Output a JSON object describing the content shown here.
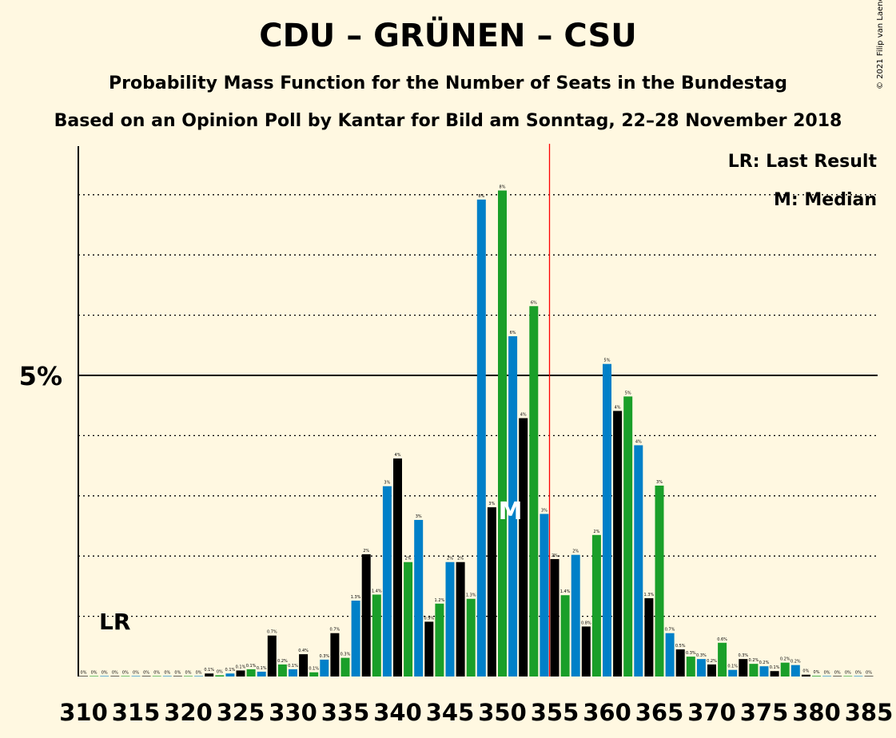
{
  "title": "CDU – GRÜNEN – CSU",
  "subtitle": "Probability Mass Function for the Number of Seats in the Bundestag",
  "subtitle2": "Based on an Opinion Poll by Kantar for Bild am Sonntag, 22–28 November 2018",
  "copyright": "© 2021 Filip van Laenen",
  "legend": {
    "last_result": "LR: Last Result",
    "median": "M: Median"
  },
  "markers": {
    "last_result_label": "LR",
    "median_label": "M"
  },
  "colors": {
    "background": "#FFF8E1",
    "cdu": "#000000",
    "gruenen": "#1A9F29",
    "csu": "#0080C8",
    "majority_line": "#FF0000"
  },
  "chart_data": {
    "type": "bar",
    "xlabel": "",
    "ylabel": "",
    "x_ticks": [
      310,
      315,
      320,
      325,
      330,
      335,
      340,
      345,
      350,
      355,
      360,
      365,
      370,
      375,
      380,
      385
    ],
    "y_tick_labels": [
      {
        "value": 5,
        "label": "5%"
      }
    ],
    "ylim": [
      0,
      8.8
    ],
    "grid_dotted_every": 1,
    "majority": 355,
    "last_result": 311,
    "median": 351,
    "legend_position": "top-right",
    "bars": [
      {
        "x": 310,
        "value": 0,
        "label": "0%"
      },
      {
        "x": 311,
        "value": 0,
        "label": "0%"
      },
      {
        "x": 312,
        "value": 0,
        "label": "0%"
      },
      {
        "x": 313,
        "value": 0,
        "label": "0%"
      },
      {
        "x": 314,
        "value": 0,
        "label": "0%"
      },
      {
        "x": 315,
        "value": 0,
        "label": "0%"
      },
      {
        "x": 316,
        "value": 0,
        "label": "0%"
      },
      {
        "x": 317,
        "value": 0,
        "label": "0%"
      },
      {
        "x": 318,
        "value": 0,
        "label": "0%"
      },
      {
        "x": 319,
        "value": 0,
        "label": "0%"
      },
      {
        "x": 320,
        "value": 0,
        "label": "0%"
      },
      {
        "x": 321,
        "value": 0,
        "label": "0%"
      },
      {
        "x": 322,
        "value": 0.05,
        "label": "0.1%"
      },
      {
        "x": 323,
        "value": 0.02,
        "label": "0%"
      },
      {
        "x": 324,
        "value": 0.05,
        "label": "0.1%"
      },
      {
        "x": 325,
        "value": 0.1,
        "label": "0.1%"
      },
      {
        "x": 326,
        "value": 0.12,
        "label": "0.1%"
      },
      {
        "x": 327,
        "value": 0.08,
        "label": "0.1%"
      },
      {
        "x": 328,
        "value": 0.68,
        "label": "0.7%"
      },
      {
        "x": 329,
        "value": 0.2,
        "label": "0.2%"
      },
      {
        "x": 330,
        "value": 0.12,
        "label": "0.1%"
      },
      {
        "x": 331,
        "value": 0.37,
        "label": "0.4%"
      },
      {
        "x": 332,
        "value": 0.07,
        "label": "0.1%"
      },
      {
        "x": 333,
        "value": 0.28,
        "label": "0.3%"
      },
      {
        "x": 334,
        "value": 0.72,
        "label": "0.7%"
      },
      {
        "x": 335,
        "value": 0.31,
        "label": "0.3%"
      },
      {
        "x": 336,
        "value": 1.26,
        "label": "1.3%"
      },
      {
        "x": 337,
        "value": 2.03,
        "label": "2%"
      },
      {
        "x": 338,
        "value": 1.36,
        "label": "1.4%"
      },
      {
        "x": 339,
        "value": 3.16,
        "label": "3%"
      },
      {
        "x": 340,
        "value": 3.62,
        "label": "4%"
      },
      {
        "x": 341,
        "value": 1.9,
        "label": "2%"
      },
      {
        "x": 342,
        "value": 2.6,
        "label": "3%"
      },
      {
        "x": 343,
        "value": 0.91,
        "label": "0.9%"
      },
      {
        "x": 344,
        "value": 1.21,
        "label": "1.2%"
      },
      {
        "x": 345,
        "value": 1.9,
        "label": "2%"
      },
      {
        "x": 346,
        "value": 1.9,
        "label": "2%"
      },
      {
        "x": 347,
        "value": 1.29,
        "label": "1.3%"
      },
      {
        "x": 348,
        "value": 7.92,
        "label": "8%"
      },
      {
        "x": 349,
        "value": 2.81,
        "label": "3%"
      },
      {
        "x": 350,
        "value": 8.07,
        "label": "8%"
      },
      {
        "x": 351,
        "value": 5.65,
        "label": "6%"
      },
      {
        "x": 352,
        "value": 4.29,
        "label": "4%"
      },
      {
        "x": 353,
        "value": 6.15,
        "label": "6%"
      },
      {
        "x": 354,
        "value": 2.7,
        "label": "3%"
      },
      {
        "x": 355,
        "value": 1.95,
        "label": "2%"
      },
      {
        "x": 356,
        "value": 1.35,
        "label": "1.4%"
      },
      {
        "x": 357,
        "value": 2.02,
        "label": "2%"
      },
      {
        "x": 358,
        "value": 0.83,
        "label": "0.8%"
      },
      {
        "x": 359,
        "value": 2.35,
        "label": "2%"
      },
      {
        "x": 360,
        "value": 5.19,
        "label": "5%"
      },
      {
        "x": 361,
        "value": 4.41,
        "label": "4%"
      },
      {
        "x": 362,
        "value": 4.65,
        "label": "5%"
      },
      {
        "x": 363,
        "value": 3.84,
        "label": "4%"
      },
      {
        "x": 364,
        "value": 1.3,
        "label": "1.3%"
      },
      {
        "x": 365,
        "value": 3.17,
        "label": "3%"
      },
      {
        "x": 366,
        "value": 0.72,
        "label": "0.7%"
      },
      {
        "x": 367,
        "value": 0.45,
        "label": "0.5%"
      },
      {
        "x": 368,
        "value": 0.33,
        "label": "0.3%"
      },
      {
        "x": 369,
        "value": 0.29,
        "label": "0.3%"
      },
      {
        "x": 370,
        "value": 0.2,
        "label": "0.2%"
      },
      {
        "x": 371,
        "value": 0.56,
        "label": "0.6%"
      },
      {
        "x": 372,
        "value": 0.11,
        "label": "0.1%"
      },
      {
        "x": 373,
        "value": 0.29,
        "label": "0.3%"
      },
      {
        "x": 374,
        "value": 0.21,
        "label": "0.2%"
      },
      {
        "x": 375,
        "value": 0.17,
        "label": "0.2%"
      },
      {
        "x": 376,
        "value": 0.09,
        "label": "0.1%"
      },
      {
        "x": 377,
        "value": 0.23,
        "label": "0.2%"
      },
      {
        "x": 378,
        "value": 0.19,
        "label": "0.2%"
      },
      {
        "x": 379,
        "value": 0.03,
        "label": "0%"
      },
      {
        "x": 380,
        "value": 0.01,
        "label": "0%"
      },
      {
        "x": 381,
        "value": 0,
        "label": "0%"
      },
      {
        "x": 382,
        "value": 0,
        "label": "0%"
      },
      {
        "x": 383,
        "value": 0,
        "label": "0%"
      },
      {
        "x": 384,
        "value": 0,
        "label": "0%"
      },
      {
        "x": 385,
        "value": 0,
        "label": "0%"
      }
    ]
  }
}
